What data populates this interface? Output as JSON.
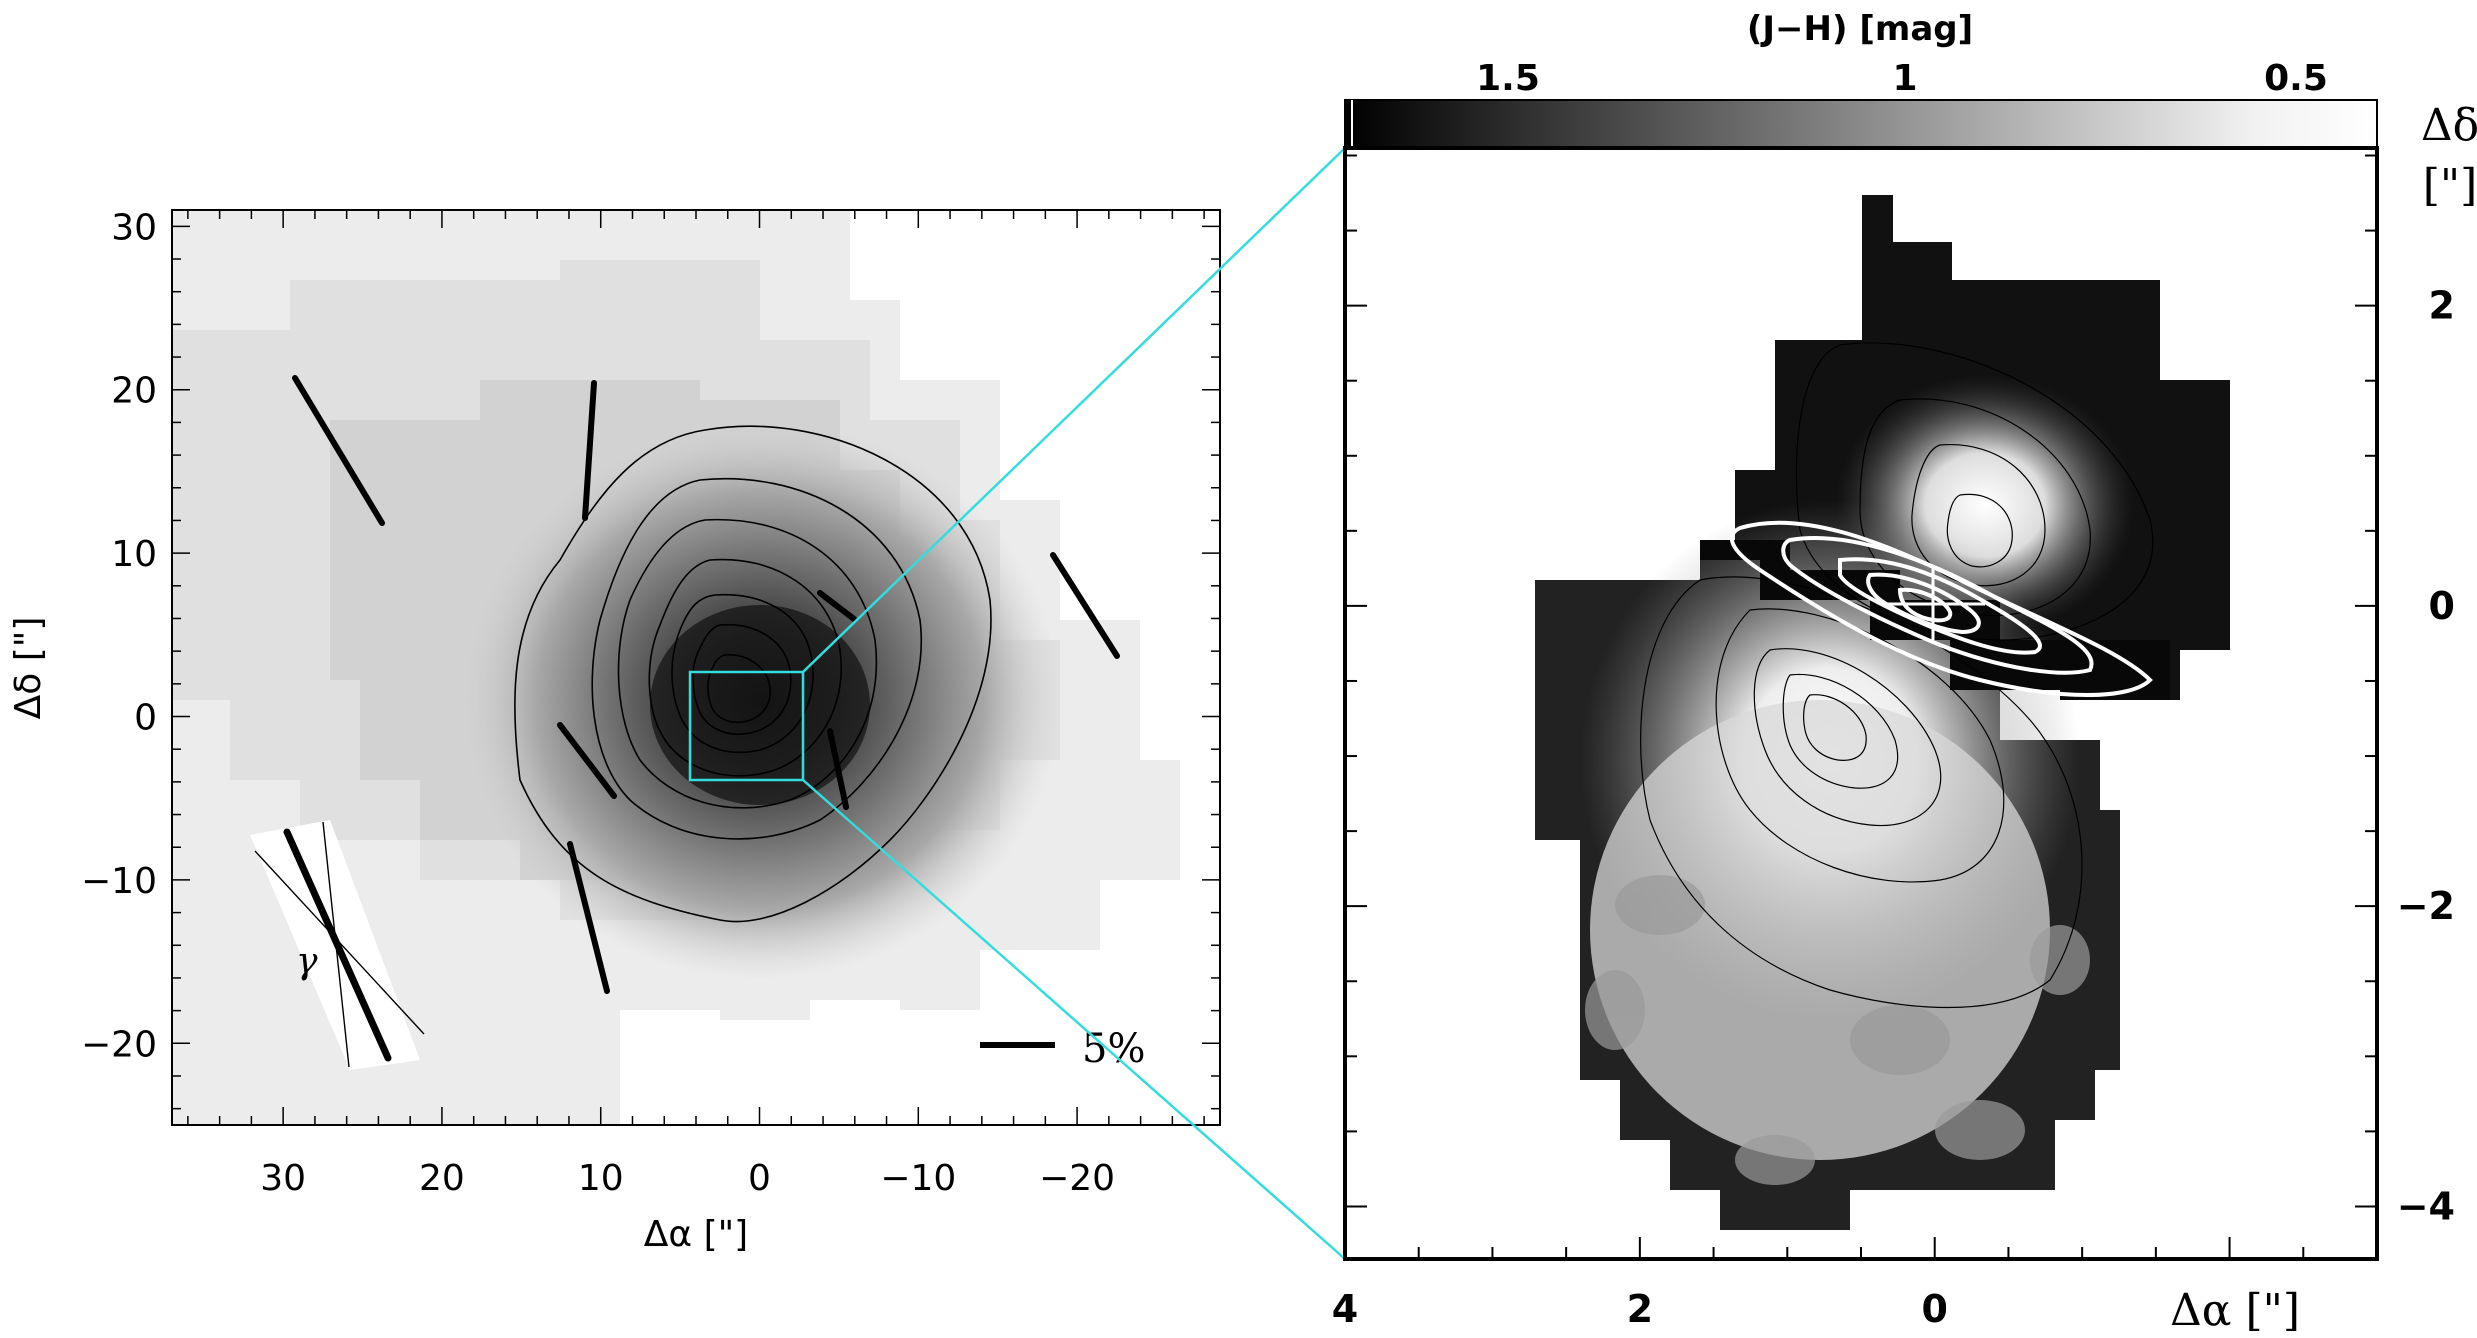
{
  "left_panel": {
    "xlabel": "Δα [\"]",
    "ylabel": "Δδ [\"]",
    "x_ticks": [
      "30",
      "20",
      "10",
      "0",
      "−10",
      "−20"
    ],
    "y_ticks": [
      "30",
      "20",
      "10",
      "0",
      "−10",
      "−20"
    ],
    "x_range": [
      37,
      -29
    ],
    "y_range": [
      -25,
      31
    ],
    "scale_bar_label": "5%",
    "gamma_label": "γ",
    "zoom_box": {
      "x": [
        -3.5,
        3.5
      ],
      "y": [
        -4,
        2.5
      ],
      "color": "#33dddd"
    }
  },
  "right_panel": {
    "colorbar_title": "(J−H) [mag]",
    "colorbar_ticks": [
      "1.5",
      "1",
      "0.5"
    ],
    "xlabel": "Δα [\"]",
    "ylabel_line1": "Δδ",
    "ylabel_line2": "[\"]",
    "x_ticks": [
      "4",
      "2",
      "0"
    ],
    "y_ticks": [
      "2",
      "0",
      "−2",
      "−4"
    ],
    "x_range": [
      4,
      -3
    ],
    "y_range": [
      -4.35,
      3.05
    ]
  },
  "connector_color": "#33dddd",
  "chart_data": [
    {
      "type": "heatmap",
      "panel": "left",
      "xlabel": "Δα [\"]",
      "ylabel": "Δδ [\"]",
      "xlim": [
        37,
        -29
      ],
      "ylim": [
        -25,
        31
      ],
      "contour_levels": 9,
      "polarization_vectors": [
        {
          "x": 26.2,
          "y": 15.5,
          "angle_deg": 39,
          "length_pct": 4.5
        },
        {
          "x": 10.4,
          "y": 15.5,
          "angle_deg": 5,
          "length_pct": 3.3
        },
        {
          "x": -23.0,
          "y": 6.5,
          "angle_deg": 33,
          "length_pct": 3.1
        },
        {
          "x": -5.0,
          "y": 6.0,
          "angle_deg": 55,
          "length_pct": 1.7
        },
        {
          "x": 10.0,
          "y": -3.0,
          "angle_deg": 43,
          "length_pct": 2.3
        },
        {
          "x": -5.0,
          "y": -3.0,
          "angle_deg": 17,
          "length_pct": 2.0
        },
        {
          "x": 12.0,
          "y": -12.0,
          "angle_deg": 16,
          "length_pct": 3.6
        }
      ],
      "grey_scale_note": "intensity map"
    },
    {
      "type": "heatmap",
      "panel": "right",
      "colorbar_label": "(J−H) [mag]",
      "colorbar_range": [
        1.75,
        0.35
      ],
      "colorbar_ticks": [
        1.5,
        1,
        0.5
      ],
      "xlim": [
        4,
        -3
      ],
      "ylim": [
        -4.35,
        3.05
      ],
      "white_contour_levels": 5,
      "black_contour_levels": 8
    }
  ]
}
